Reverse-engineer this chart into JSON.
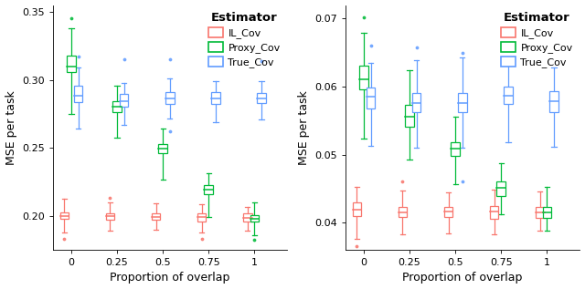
{
  "x_labels": [
    "0",
    "0.25",
    "0.5",
    "0.75",
    "1"
  ],
  "x_positions": [
    0,
    0.25,
    0.5,
    0.75,
    1.0
  ],
  "colors": {
    "IL_Cov": "#F8766D",
    "Proxy_Cov": "#00BA38",
    "True_Cov": "#619CFF"
  },
  "xlabel": "Proportion of overlap",
  "ylabel": "MSE per task",
  "legend_title": "Estimator",
  "estimator_labels": [
    "IL_Cov",
    "Proxy_Cov",
    "True_Cov"
  ],
  "plot1": {
    "ylim": [
      0.175,
      0.355
    ],
    "yticks": [
      0.2,
      0.25,
      0.3,
      0.35
    ],
    "yticklabels": [
      "0.20",
      "0.25",
      "0.30",
      "0.35"
    ],
    "IL_Cov": {
      "boxes": [
        {
          "q1": 0.1975,
          "med": 0.1995,
          "q3": 0.2025,
          "whislo": 0.1875,
          "whishi": 0.2125,
          "fliers_low": [
            0.183
          ],
          "fliers_high": []
        },
        {
          "q1": 0.197,
          "med": 0.1995,
          "q3": 0.2015,
          "whislo": 0.189,
          "whishi": 0.2095,
          "fliers_low": [],
          "fliers_high": [
            0.213
          ]
        },
        {
          "q1": 0.197,
          "med": 0.199,
          "q3": 0.202,
          "whislo": 0.19,
          "whishi": 0.209,
          "fliers_low": [],
          "fliers_high": []
        },
        {
          "q1": 0.196,
          "med": 0.199,
          "q3": 0.202,
          "whislo": 0.1875,
          "whishi": 0.2085,
          "fliers_low": [
            0.183
          ],
          "fliers_high": []
        },
        {
          "q1": 0.196,
          "med": 0.1985,
          "q3": 0.2015,
          "whislo": 0.189,
          "whishi": 0.2065,
          "fliers_low": [],
          "fliers_high": []
        }
      ]
    },
    "Proxy_Cov": {
      "boxes": [
        {
          "q1": 0.3055,
          "med": 0.31,
          "q3": 0.3175,
          "whislo": 0.275,
          "whishi": 0.338,
          "fliers_low": [],
          "fliers_high": [
            0.345
          ]
        },
        {
          "q1": 0.276,
          "med": 0.28,
          "q3": 0.284,
          "whislo": 0.2575,
          "whishi": 0.296,
          "fliers_low": [],
          "fliers_high": []
        },
        {
          "q1": 0.246,
          "med": 0.2495,
          "q3": 0.253,
          "whislo": 0.2265,
          "whishi": 0.264,
          "fliers_low": [],
          "fliers_high": []
        },
        {
          "q1": 0.2155,
          "med": 0.219,
          "q3": 0.2225,
          "whislo": 0.199,
          "whishi": 0.231,
          "fliers_low": [],
          "fliers_high": []
        },
        {
          "q1": 0.196,
          "med": 0.198,
          "q3": 0.2005,
          "whislo": 0.1855,
          "whishi": 0.2095,
          "fliers_low": [
            0.182
          ],
          "fliers_high": []
        }
      ]
    },
    "True_Cov": {
      "boxes": [
        {
          "q1": 0.2835,
          "med": 0.2885,
          "q3": 0.296,
          "whislo": 0.264,
          "whishi": 0.309,
          "fliers_low": [],
          "fliers_high": [
            0.317
          ]
        },
        {
          "q1": 0.28,
          "med": 0.2845,
          "q3": 0.2895,
          "whislo": 0.2665,
          "whishi": 0.2975,
          "fliers_low": [],
          "fliers_high": [
            0.315
          ]
        },
        {
          "q1": 0.2825,
          "med": 0.2865,
          "q3": 0.291,
          "whislo": 0.2715,
          "whishi": 0.301,
          "fliers_low": [
            0.262
          ],
          "fliers_high": [
            0.315
          ]
        },
        {
          "q1": 0.282,
          "med": 0.286,
          "q3": 0.291,
          "whislo": 0.269,
          "whishi": 0.299,
          "fliers_low": [],
          "fliers_high": [
            0.314
          ]
        },
        {
          "q1": 0.283,
          "med": 0.2865,
          "q3": 0.2905,
          "whislo": 0.271,
          "whishi": 0.299,
          "fliers_low": [],
          "fliers_high": [
            0.314
          ]
        }
      ]
    }
  },
  "plot2": {
    "ylim": [
      0.036,
      0.072
    ],
    "yticks": [
      0.04,
      0.05,
      0.06,
      0.07
    ],
    "yticklabels": [
      "0.04",
      "0.05",
      "0.06",
      "0.07"
    ],
    "IL_Cov": {
      "boxes": [
        {
          "q1": 0.04095,
          "med": 0.04195,
          "q3": 0.04295,
          "whislo": 0.0376,
          "whishi": 0.0453,
          "fliers_low": [
            0.0365
          ],
          "fliers_high": []
        },
        {
          "q1": 0.04075,
          "med": 0.0415,
          "q3": 0.04235,
          "whislo": 0.0382,
          "whishi": 0.0447,
          "fliers_low": [],
          "fliers_high": [
            0.046
          ]
        },
        {
          "q1": 0.04075,
          "med": 0.04155,
          "q3": 0.04235,
          "whislo": 0.0384,
          "whishi": 0.0444,
          "fliers_low": [],
          "fliers_high": []
        },
        {
          "q1": 0.0406,
          "med": 0.04155,
          "q3": 0.04245,
          "whislo": 0.0383,
          "whishi": 0.0448,
          "fliers_low": [],
          "fliers_high": []
        },
        {
          "q1": 0.0407,
          "med": 0.0415,
          "q3": 0.04235,
          "whislo": 0.0388,
          "whishi": 0.0446,
          "fliers_low": [],
          "fliers_high": []
        }
      ]
    },
    "Proxy_Cov": {
      "boxes": [
        {
          "q1": 0.0596,
          "med": 0.0611,
          "q3": 0.06305,
          "whislo": 0.0523,
          "whishi": 0.0679,
          "fliers_low": [],
          "fliers_high": [
            0.0702
          ]
        },
        {
          "q1": 0.05405,
          "med": 0.05555,
          "q3": 0.05725,
          "whislo": 0.04925,
          "whishi": 0.06235,
          "fliers_low": [],
          "fliers_high": []
        },
        {
          "q1": 0.04975,
          "med": 0.05085,
          "q3": 0.05185,
          "whislo": 0.0457,
          "whishi": 0.05555,
          "fliers_low": [],
          "fliers_high": []
        },
        {
          "q1": 0.04395,
          "med": 0.04505,
          "q3": 0.04605,
          "whislo": 0.04125,
          "whishi": 0.04875,
          "fliers_low": [],
          "fliers_high": []
        },
        {
          "q1": 0.0407,
          "med": 0.0415,
          "q3": 0.04235,
          "whislo": 0.0388,
          "whishi": 0.0453,
          "fliers_low": [],
          "fliers_high": []
        }
      ]
    },
    "True_Cov": {
      "boxes": [
        {
          "q1": 0.0568,
          "med": 0.05855,
          "q3": 0.05985,
          "whislo": 0.0513,
          "whishi": 0.06345,
          "fliers_low": [],
          "fliers_high": [
            0.0661
          ]
        },
        {
          "q1": 0.0562,
          "med": 0.05755,
          "q3": 0.05905,
          "whislo": 0.05095,
          "whishi": 0.06395,
          "fliers_low": [],
          "fliers_high": [
            0.0658
          ]
        },
        {
          "q1": 0.0562,
          "med": 0.05755,
          "q3": 0.05905,
          "whislo": 0.05095,
          "whishi": 0.06435,
          "fliers_low": [
            0.046
          ],
          "fliers_high": [
            0.065
          ]
        },
        {
          "q1": 0.0575,
          "med": 0.0586,
          "q3": 0.06005,
          "whislo": 0.05175,
          "whishi": 0.06395,
          "fliers_low": [],
          "fliers_high": [
            0.0678
          ]
        },
        {
          "q1": 0.0562,
          "med": 0.05785,
          "q3": 0.0593,
          "whislo": 0.0512,
          "whishi": 0.06285,
          "fliers_low": [],
          "fliers_high": []
        }
      ]
    }
  }
}
